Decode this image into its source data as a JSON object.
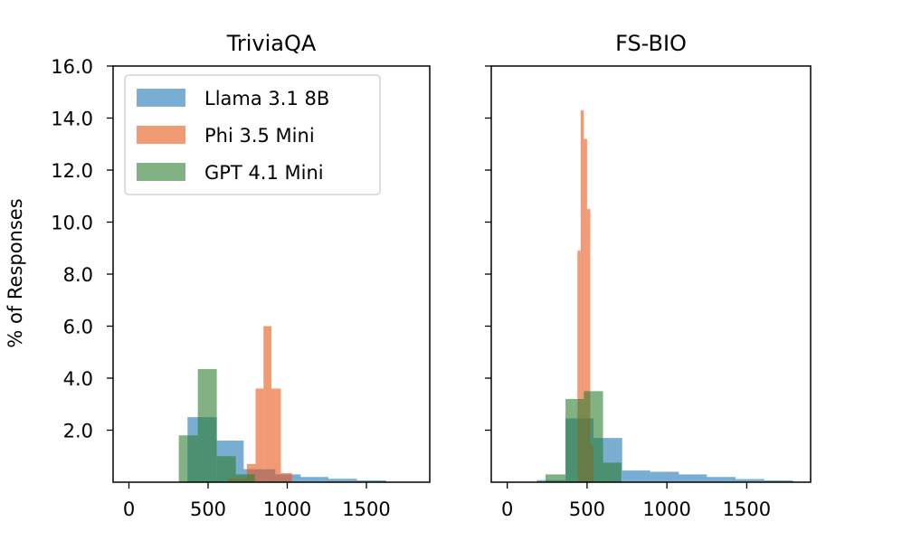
{
  "chart_data": {
    "type": "histogram",
    "ylabel": "% of Responses",
    "legend": {
      "placement": "top-left",
      "entries": [
        "Llama 3.1 8B",
        "Phi 3.5 Mini",
        "GPT 4.1 Mini"
      ]
    },
    "series_colors": {
      "Llama 3.1 8B": "#1f77b4",
      "Phi 3.5 Mini": "#e8571a",
      "GPT 4.1 Mini": "#2e7d32"
    },
    "ylim": [
      0,
      16
    ],
    "yticks": [
      2,
      4,
      6,
      8,
      10,
      12,
      14,
      16
    ],
    "ytick_labels": [
      "2.0",
      "4.0",
      "6.0",
      "8.0",
      "10.0",
      "12.0",
      "14.0",
      "16.0"
    ],
    "panels": [
      {
        "title": "TriviaQA",
        "xlim": [
          -100,
          1900
        ],
        "xticks": [
          0,
          500,
          1000,
          1500
        ],
        "xtick_labels": [
          "0",
          "500",
          "1000",
          "1500"
        ],
        "series": [
          {
            "name": "Llama 3.1 8B",
            "bins": [
              [
                370,
                555,
                2.5
              ],
              [
                555,
                725,
                1.6
              ],
              [
                725,
                925,
                0.5
              ],
              [
                925,
                1085,
                0.3
              ],
              [
                1085,
                1260,
                0.2
              ],
              [
                1260,
                1440,
                0.13
              ],
              [
                1440,
                1625,
                0.07
              ]
            ]
          },
          {
            "name": "Phi 3.5 Mini",
            "bins": [
              [
                625,
                745,
                0.15
              ],
              [
                745,
                800,
                0.7
              ],
              [
                800,
                850,
                3.6
              ],
              [
                850,
                900,
                6.0
              ],
              [
                900,
                960,
                3.6
              ],
              [
                960,
                1030,
                0.35
              ]
            ]
          },
          {
            "name": "GPT 4.1 Mini",
            "bins": [
              [
                315,
                435,
                1.8
              ],
              [
                435,
                555,
                4.35
              ],
              [
                555,
                675,
                1.0
              ],
              [
                675,
                795,
                0.3
              ]
            ]
          }
        ]
      },
      {
        "title": "FS-BIO",
        "xlim": [
          -100,
          1900
        ],
        "xticks": [
          0,
          500,
          1000,
          1500
        ],
        "xtick_labels": [
          "0",
          "500",
          "1000",
          "1500"
        ],
        "series": [
          {
            "name": "Llama 3.1 8B",
            "bins": [
              [
                185,
                365,
                0.08
              ],
              [
                365,
                540,
                2.45
              ],
              [
                540,
                720,
                1.7
              ],
              [
                720,
                895,
                0.45
              ],
              [
                895,
                1075,
                0.4
              ],
              [
                1075,
                1250,
                0.3
              ],
              [
                1250,
                1430,
                0.2
              ],
              [
                1430,
                1610,
                0.12
              ],
              [
                1610,
                1790,
                0.07
              ]
            ]
          },
          {
            "name": "Phi 3.5 Mini",
            "bins": [
              [
                440,
                460,
                8.9
              ],
              [
                460,
                480,
                14.3
              ],
              [
                480,
                500,
                13.2
              ],
              [
                500,
                520,
                10.5
              ],
              [
                520,
                540,
                1.4
              ]
            ]
          },
          {
            "name": "GPT 4.1 Mini",
            "bins": [
              [
                240,
                365,
                0.3
              ],
              [
                365,
                480,
                3.2
              ],
              [
                480,
                600,
                3.5
              ],
              [
                600,
                715,
                0.75
              ]
            ]
          }
        ]
      }
    ]
  }
}
